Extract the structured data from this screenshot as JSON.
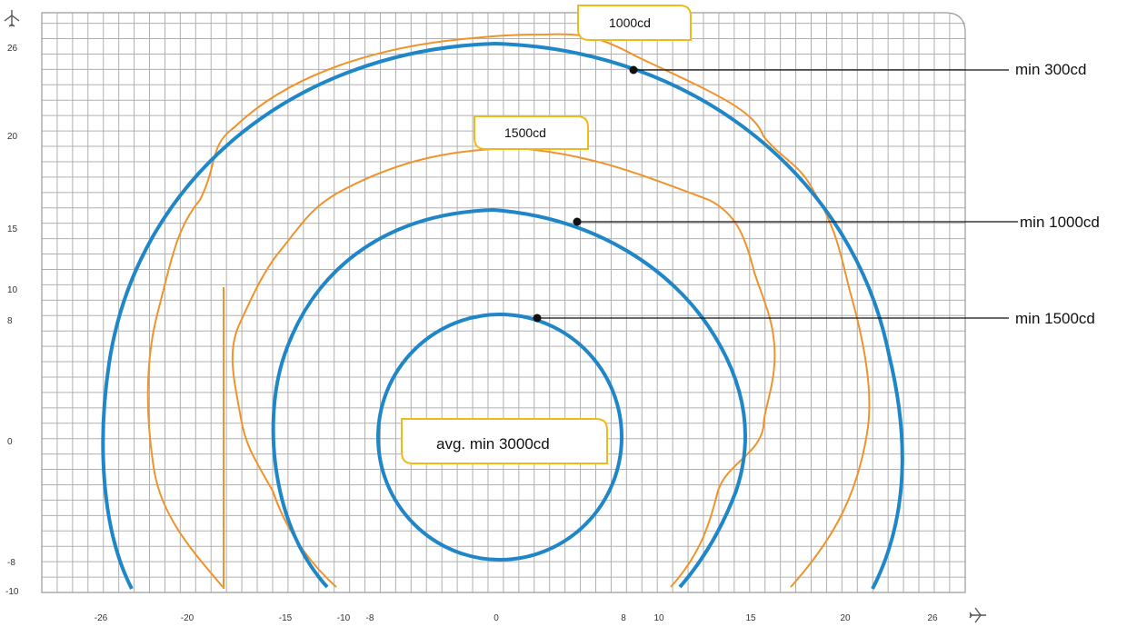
{
  "x_ticks": [
    "-26",
    "-20",
    "-15",
    "-10",
    "-8",
    "0",
    "8",
    "10",
    "15",
    "20",
    "26"
  ],
  "y_ticks": [
    "26",
    "20",
    "15",
    "10",
    "8",
    "0",
    "-8",
    "-10"
  ],
  "callouts": {
    "outer": "min 300cd",
    "middle": "min 1000cd",
    "inner": "min 1500cd"
  },
  "boxes": {
    "top": "1000cd",
    "mid": "1500cd",
    "center": "avg. min 3000cd"
  },
  "axis_icons": {
    "vertical": "airplane-up-icon",
    "horizontal": "airplane-right-icon"
  },
  "colors": {
    "blue": "#1f86c8",
    "orange": "#f0932b",
    "yellow": "#f2b91a",
    "grid": "#b0b0b0"
  }
}
